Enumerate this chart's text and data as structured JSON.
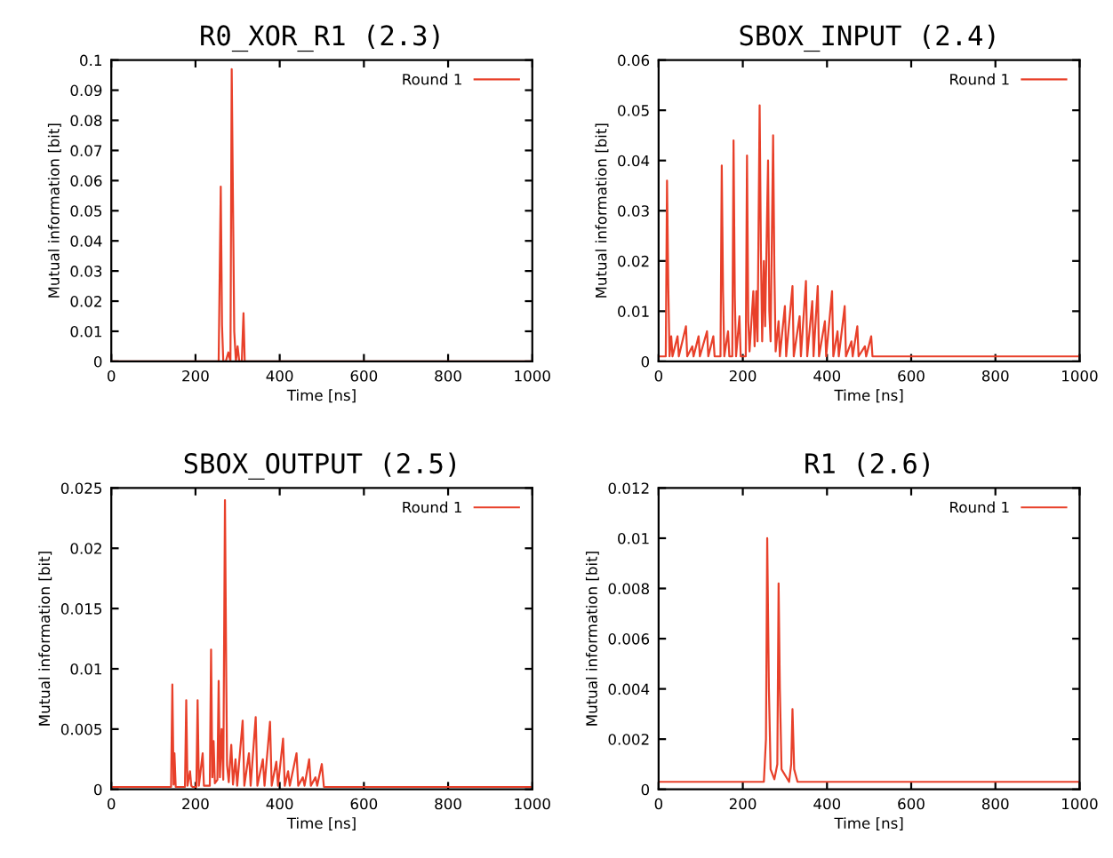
{
  "chart_data": [
    {
      "type": "line",
      "title": "R0_XOR_R1 (2.3)",
      "xlabel": "Time [ns]",
      "ylabel": "Mutual information [bit]",
      "xlim": [
        0,
        1000
      ],
      "xticks": [
        0,
        200,
        400,
        600,
        800,
        1000
      ],
      "ylim": [
        0,
        0.1
      ],
      "yticks": [
        0,
        0.01,
        0.02,
        0.03,
        0.04,
        0.05,
        0.06,
        0.07,
        0.08,
        0.09,
        0.1
      ],
      "grid": false,
      "legend": "top right",
      "line_style": "solid",
      "marker": "none",
      "series": [
        {
          "name": "Round 1",
          "color": "#e8402a",
          "x": [
            0,
            255,
            260,
            263,
            266,
            272,
            278,
            283,
            286,
            289,
            292,
            296,
            300,
            304,
            310,
            314,
            317,
            1000
          ],
          "values": [
            0,
            0,
            0.058,
            0.012,
            0,
            0,
            0.003,
            0,
            0.097,
            0.053,
            0.01,
            0,
            0.005,
            0,
            0,
            0.016,
            0,
            0
          ]
        }
      ]
    },
    {
      "type": "line",
      "title": "SBOX_INPUT (2.4)",
      "xlabel": "Time [ns]",
      "ylabel": "Mutual information [bit]",
      "xlim": [
        0,
        1000
      ],
      "xticks": [
        0,
        200,
        400,
        600,
        800,
        1000
      ],
      "ylim": [
        0,
        0.06
      ],
      "yticks": [
        0,
        0.01,
        0.02,
        0.03,
        0.04,
        0.05,
        0.06
      ],
      "grid": false,
      "legend": "top right",
      "line_style": "solid",
      "marker": "none",
      "series": [
        {
          "name": "Round 1",
          "color": "#e8402a",
          "x": [
            0,
            17,
            20,
            23,
            26,
            30,
            33,
            45,
            48,
            65,
            68,
            80,
            83,
            95,
            98,
            115,
            118,
            130,
            133,
            147,
            150,
            153,
            156,
            165,
            168,
            175,
            178,
            181,
            184,
            192,
            195,
            207,
            210,
            213,
            216,
            225,
            228,
            232,
            235,
            240,
            243,
            246,
            250,
            253,
            260,
            263,
            266,
            272,
            275,
            278,
            285,
            288,
            300,
            303,
            318,
            321,
            335,
            338,
            350,
            353,
            365,
            368,
            378,
            381,
            395,
            398,
            412,
            415,
            425,
            428,
            442,
            445,
            458,
            461,
            472,
            475,
            490,
            493,
            505,
            508,
            1000
          ],
          "values": [
            0.001,
            0.001,
            0.036,
            0.015,
            0.001,
            0.005,
            0.001,
            0.005,
            0.001,
            0.007,
            0.001,
            0.003,
            0.001,
            0.005,
            0.001,
            0.006,
            0.001,
            0.005,
            0.001,
            0.001,
            0.039,
            0.014,
            0.001,
            0.006,
            0.001,
            0.001,
            0.044,
            0.013,
            0.001,
            0.009,
            0.001,
            0.001,
            0.041,
            0.008,
            0.002,
            0.014,
            0.003,
            0.014,
            0.004,
            0.051,
            0.022,
            0.004,
            0.02,
            0.007,
            0.04,
            0.01,
            0.004,
            0.045,
            0.018,
            0.002,
            0.008,
            0.001,
            0.011,
            0.001,
            0.015,
            0.001,
            0.009,
            0.001,
            0.016,
            0.001,
            0.012,
            0.001,
            0.015,
            0.001,
            0.008,
            0.001,
            0.014,
            0.001,
            0.006,
            0.001,
            0.011,
            0.001,
            0.004,
            0.001,
            0.007,
            0.001,
            0.003,
            0.001,
            0.005,
            0.001,
            0.001
          ]
        }
      ]
    },
    {
      "type": "line",
      "title": "SBOX_OUTPUT (2.5)",
      "xlabel": "Time [ns]",
      "ylabel": "Mutual information [bit]",
      "xlim": [
        0,
        1000
      ],
      "xticks": [
        0,
        200,
        400,
        600,
        800,
        1000
      ],
      "ylim": [
        0,
        0.025
      ],
      "yticks": [
        0,
        0.005,
        0.01,
        0.015,
        0.02,
        0.025
      ],
      "grid": false,
      "legend": "top right",
      "line_style": "solid",
      "marker": "none",
      "series": [
        {
          "name": "Round 1",
          "color": "#e8402a",
          "x": [
            0,
            142,
            145,
            148,
            150,
            153,
            175,
            178,
            181,
            187,
            190,
            193,
            202,
            205,
            208,
            217,
            220,
            223,
            234,
            237,
            240,
            243,
            246,
            252,
            255,
            258,
            262,
            266,
            270,
            273,
            275,
            279,
            285,
            289,
            295,
            299,
            312,
            316,
            327,
            331,
            343,
            347,
            360,
            364,
            377,
            381,
            392,
            396,
            408,
            412,
            420,
            424,
            440,
            444,
            455,
            459,
            470,
            474,
            485,
            489,
            500,
            505,
            1000
          ],
          "values": [
            0.0002,
            0.0002,
            0.0087,
            0.0004,
            0.003,
            0.0002,
            0.0002,
            0.0074,
            0.0003,
            0.0015,
            0.0003,
            0.0002,
            0.0002,
            0.0074,
            0.0003,
            0.003,
            0.0003,
            0.0003,
            0.0003,
            0.0116,
            0.001,
            0.004,
            0.0005,
            0.0008,
            0.009,
            0.001,
            0.005,
            0.0008,
            0.024,
            0.0095,
            0.002,
            0.0006,
            0.0037,
            0.0004,
            0.0025,
            0.0003,
            0.0057,
            0.0003,
            0.003,
            0.0003,
            0.006,
            0.0003,
            0.0025,
            0.0003,
            0.0056,
            0.0003,
            0.0023,
            0.0003,
            0.0042,
            0.0003,
            0.0015,
            0.0003,
            0.003,
            0.0003,
            0.001,
            0.0003,
            0.0025,
            0.0003,
            0.001,
            0.0003,
            0.0021,
            0.0002,
            0.0002
          ]
        }
      ]
    },
    {
      "type": "line",
      "title": "R1 (2.6)",
      "xlabel": "Time [ns]",
      "ylabel": "Mutual information [bit]",
      "xlim": [
        0,
        1000
      ],
      "xticks": [
        0,
        200,
        400,
        600,
        800,
        1000
      ],
      "ylim": [
        0,
        0.012
      ],
      "yticks": [
        0,
        0.002,
        0.004,
        0.006,
        0.008,
        0.01,
        0.012
      ],
      "grid": false,
      "legend": "top right",
      "line_style": "solid",
      "marker": "none",
      "series": [
        {
          "name": "Round 1",
          "color": "#e8402a",
          "x": [
            0,
            250,
            255,
            258,
            262,
            266,
            275,
            282,
            285,
            288,
            292,
            310,
            315,
            318,
            322,
            330,
            1000
          ],
          "values": [
            0.0003,
            0.0003,
            0.002,
            0.01,
            0.004,
            0.0008,
            0.0004,
            0.001,
            0.0082,
            0.004,
            0.0008,
            0.0003,
            0.001,
            0.0032,
            0.0008,
            0.0003,
            0.0003
          ]
        }
      ]
    }
  ]
}
